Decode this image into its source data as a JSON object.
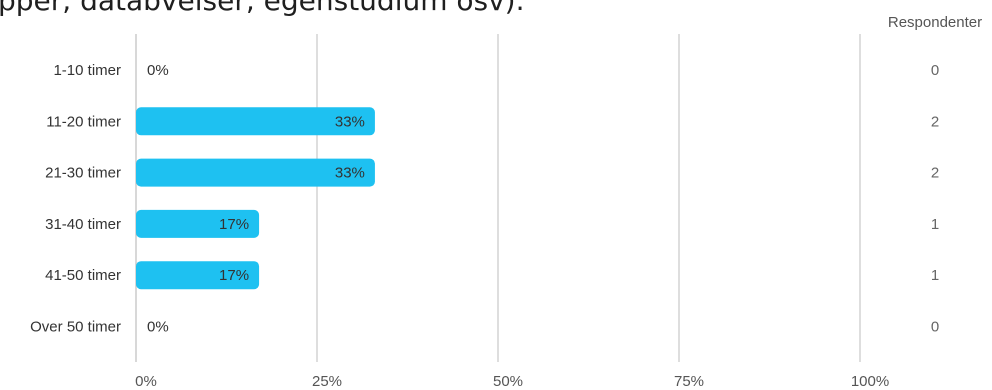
{
  "question_fragment": "pper, databveiser, egenstudium osv).",
  "chart_data": {
    "type": "bar",
    "orientation": "horizontal",
    "categories": [
      "1-10 timer",
      "11-20 timer",
      "21-30 timer",
      "31-40 timer",
      "41-50 timer",
      "Over 50 timer"
    ],
    "values": [
      0,
      33,
      33,
      17,
      17,
      0
    ],
    "value_labels": [
      "0%",
      "33%",
      "33%",
      "17%",
      "17%",
      "0%"
    ],
    "respondent_counts": [
      "0",
      "2",
      "2",
      "1",
      "1",
      "0"
    ],
    "count_header": "Respondenter",
    "xlim": [
      0,
      100
    ],
    "xticks": [
      "0%",
      "25%",
      "50%",
      "75%",
      "100%"
    ],
    "grid": true,
    "bar_color": "#1ec1f1"
  }
}
